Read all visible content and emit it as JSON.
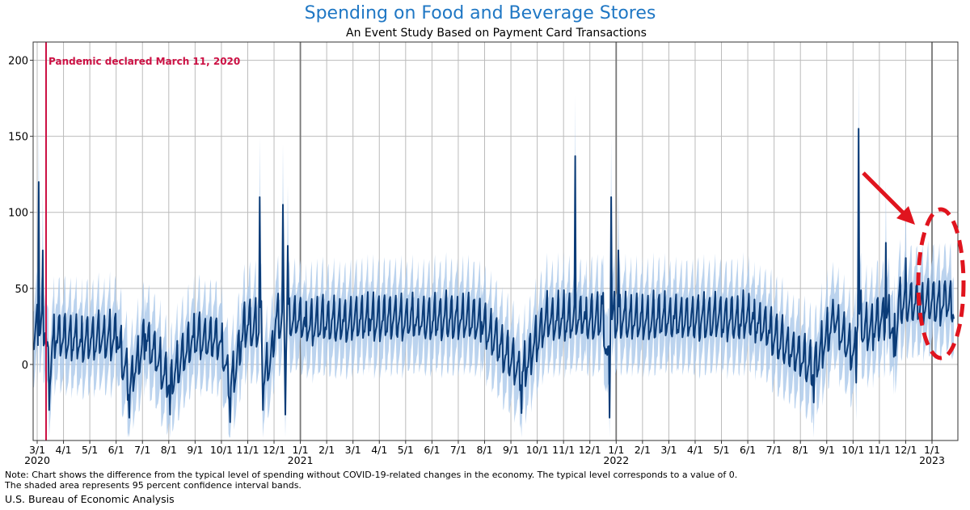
{
  "chart_data": {
    "type": "line",
    "title": "Spending on Food and Beverage Stores",
    "subtitle": "An Event Study Based on Payment Card Transactions",
    "ylim": [
      -50,
      212
    ],
    "yticks": [
      0,
      50,
      100,
      150,
      200
    ],
    "x_tick_labels": [
      "3/1",
      "4/1",
      "5/1",
      "6/1",
      "7/1",
      "8/1",
      "9/1",
      "10/1",
      "11/1",
      "12/1",
      "1/1",
      "2/1",
      "3/1",
      "4/1",
      "5/1",
      "6/1",
      "7/1",
      "8/1",
      "9/1",
      "10/1",
      "11/1",
      "12/1",
      "1/1",
      "2/1",
      "3/1",
      "4/1",
      "5/1",
      "6/1",
      "7/1",
      "8/1",
      "9/1",
      "10/1",
      "11/1",
      "12/1",
      "1/1"
    ],
    "year_labels": [
      {
        "label": "2020",
        "tick_index": 0
      },
      {
        "label": "2021",
        "tick_index": 10
      },
      {
        "label": "2022",
        "tick_index": 22
      },
      {
        "label": "2023",
        "tick_index": 34
      }
    ],
    "year_boundary_tick_indices": [
      10,
      22,
      34
    ],
    "event_annotation": {
      "label": "Pandemic declared March 11, 2020",
      "color": "#cc1144"
    },
    "series": [
      {
        "name": "Difference from typical level",
        "color": "#0b3c78",
        "keypoints": [
          [
            0,
            10
          ],
          [
            3,
            25
          ],
          [
            7,
            120
          ],
          [
            12,
            75
          ],
          [
            20,
            -30
          ],
          [
            25,
            20
          ],
          [
            60,
            15
          ],
          [
            105,
            18
          ],
          [
            120,
            -35
          ],
          [
            140,
            20
          ],
          [
            171,
            -33
          ],
          [
            200,
            18
          ],
          [
            235,
            15
          ],
          [
            246,
            -38
          ],
          [
            260,
            15
          ],
          [
            283,
            110
          ],
          [
            287,
            -30
          ],
          [
            300,
            5
          ],
          [
            312,
            105
          ],
          [
            315,
            -33
          ],
          [
            318,
            78
          ],
          [
            340,
            25
          ],
          [
            420,
            30
          ],
          [
            480,
            32
          ],
          [
            560,
            28
          ],
          [
            610,
            -32
          ],
          [
            640,
            30
          ],
          [
            677,
            137
          ],
          [
            690,
            30
          ],
          [
            710,
            45
          ],
          [
            720,
            -35
          ],
          [
            722,
            110
          ],
          [
            731,
            75
          ],
          [
            760,
            35
          ],
          [
            800,
            32
          ],
          [
            900,
            30
          ],
          [
            975,
            -25
          ],
          [
            1000,
            30
          ],
          [
            1028,
            -12
          ],
          [
            1031,
            155
          ],
          [
            1036,
            15
          ],
          [
            1050,
            20
          ],
          [
            1065,
            80
          ],
          [
            1075,
            5
          ],
          [
            1090,
            70
          ],
          [
            1140,
            48
          ],
          [
            1150,
            30
          ]
        ]
      }
    ],
    "confidence_band": {
      "label": "95 percent confidence interval",
      "color": "#aac8ea",
      "half_width": 25
    }
  },
  "note": {
    "line1": "Note: Chart shows the difference from the typical level of spending without COVID-19-related changes in the economy. The typical level corresponds to a value of 0.",
    "line2": "The shaded area represents 95 percent confidence interval bands."
  },
  "source": "U.S. Bureau of Economic Analysis",
  "highlight_color": "#e0141e"
}
